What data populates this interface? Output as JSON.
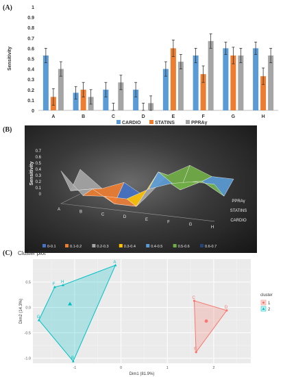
{
  "panels": {
    "a": "(A)",
    "b": "(B)",
    "c": "(C)"
  },
  "colors": {
    "cardio": "#5b9bd5",
    "statins": "#ed7d31",
    "ppra": "#a5a5a5"
  },
  "chart_data": [
    {
      "type": "bar",
      "categories": [
        "A",
        "B",
        "C",
        "D",
        "E",
        "F",
        "G",
        "H"
      ],
      "series": [
        {
          "name": "CARDIO",
          "values": [
            0.53,
            0.17,
            0.2,
            0.2,
            0.4,
            0.53,
            0.6,
            0.6
          ],
          "errors": [
            0.07,
            0.06,
            0.07,
            0.07,
            0.07,
            0.07,
            0.06,
            0.06
          ]
        },
        {
          "name": "STATINS",
          "values": [
            0.13,
            0.2,
            0,
            0,
            0.6,
            0.35,
            0.53,
            0.33
          ],
          "errors": [
            0.08,
            0.07,
            0.07,
            0.07,
            0.08,
            0.08,
            0.08,
            0.08
          ]
        },
        {
          "name": "PPRAγ",
          "values": [
            0.4,
            0.13,
            0.27,
            0.07,
            0.47,
            0.67,
            0.53,
            0.53
          ],
          "errors": [
            0.07,
            0.07,
            0.07,
            0.07,
            0.07,
            0.07,
            0.07,
            0.07
          ]
        }
      ],
      "ylabel": "Sensitivity",
      "ylim": [
        0,
        1
      ],
      "yticks": [
        "0",
        "0.1",
        "0.2",
        "0.3",
        "0.4",
        "0.5",
        "0.6",
        "0.7",
        "0.8",
        "0.9",
        "1"
      ],
      "grid": false,
      "legend": "bottom"
    },
    {
      "type": "area",
      "subtype": "3d-surface",
      "categories": [
        "A",
        "B",
        "C",
        "D",
        "E",
        "F",
        "G",
        "H"
      ],
      "series": [
        {
          "name": "CARDIO",
          "values": [
            0.53,
            0.17,
            0.2,
            0.2,
            0.4,
            0.53,
            0.6,
            0.6
          ]
        },
        {
          "name": "STATINS",
          "values": [
            0.13,
            0.2,
            0,
            0,
            0.6,
            0.35,
            0.53,
            0.33
          ]
        },
        {
          "name": "PPRAγ",
          "values": [
            0.4,
            0.13,
            0.27,
            0.07,
            0.47,
            0.67,
            0.53,
            0.53
          ]
        }
      ],
      "ylabel": "Sensitivity",
      "zlim": [
        0,
        0.7
      ],
      "zticks": [
        "0",
        "0.1",
        "0.2",
        "0.3",
        "0.4",
        "0.5",
        "0.6",
        "0.7"
      ],
      "depth_labels": [
        "PPRAγ",
        "STATINS",
        "CARDIO"
      ],
      "legend": "bottom",
      "bands": [
        {
          "label": "0-0.1",
          "color": "#4472c4"
        },
        {
          "label": "0.1-0.2",
          "color": "#ed7d31"
        },
        {
          "label": "0.2-0.3",
          "color": "#a5a5a5"
        },
        {
          "label": "0.3-0.4",
          "color": "#ffc000"
        },
        {
          "label": "0.4-0.5",
          "color": "#5b9bd5"
        },
        {
          "label": "0.5-0.6",
          "color": "#70ad47"
        },
        {
          "label": "0.6-0.7",
          "color": "#264478"
        }
      ]
    },
    {
      "type": "scatter",
      "title": "Cluster plot",
      "xlabel": "Dim1 (81.9%)",
      "ylabel": "Dim2 (14.3%)",
      "xlim": [
        -1.9,
        2.8
      ],
      "ylim": [
        -1.1,
        0.95
      ],
      "xticks": [
        -1,
        0,
        1,
        2
      ],
      "yticks": [
        -1.0,
        -0.5,
        0.0,
        0.5
      ],
      "grid": true,
      "legend": "right",
      "legend_title": "cluster",
      "clusters": [
        {
          "name": "1",
          "color": "#f8766d",
          "marker": "circle",
          "points": [
            {
              "label": "C",
              "x": 1.58,
              "y": 0.13
            },
            {
              "label": "D",
              "x": 2.28,
              "y": -0.06
            },
            {
              "label": "E",
              "x": 1.62,
              "y": -0.88
            }
          ],
          "centroid": {
            "x": 1.84,
            "y": -0.27
          }
        },
        {
          "name": "2",
          "color": "#00bfc4",
          "marker": "triangle",
          "points": [
            {
              "label": "A",
              "x": -0.12,
              "y": 0.83
            },
            {
              "label": "F",
              "x": -1.43,
              "y": 0.4
            },
            {
              "label": "H",
              "x": -1.25,
              "y": 0.44
            },
            {
              "label": "G",
              "x": -1.77,
              "y": -0.25
            },
            {
              "label": "B",
              "x": -1.03,
              "y": -1.06
            }
          ],
          "centroid": {
            "x": -1.1,
            "y": 0.07
          }
        }
      ]
    }
  ]
}
